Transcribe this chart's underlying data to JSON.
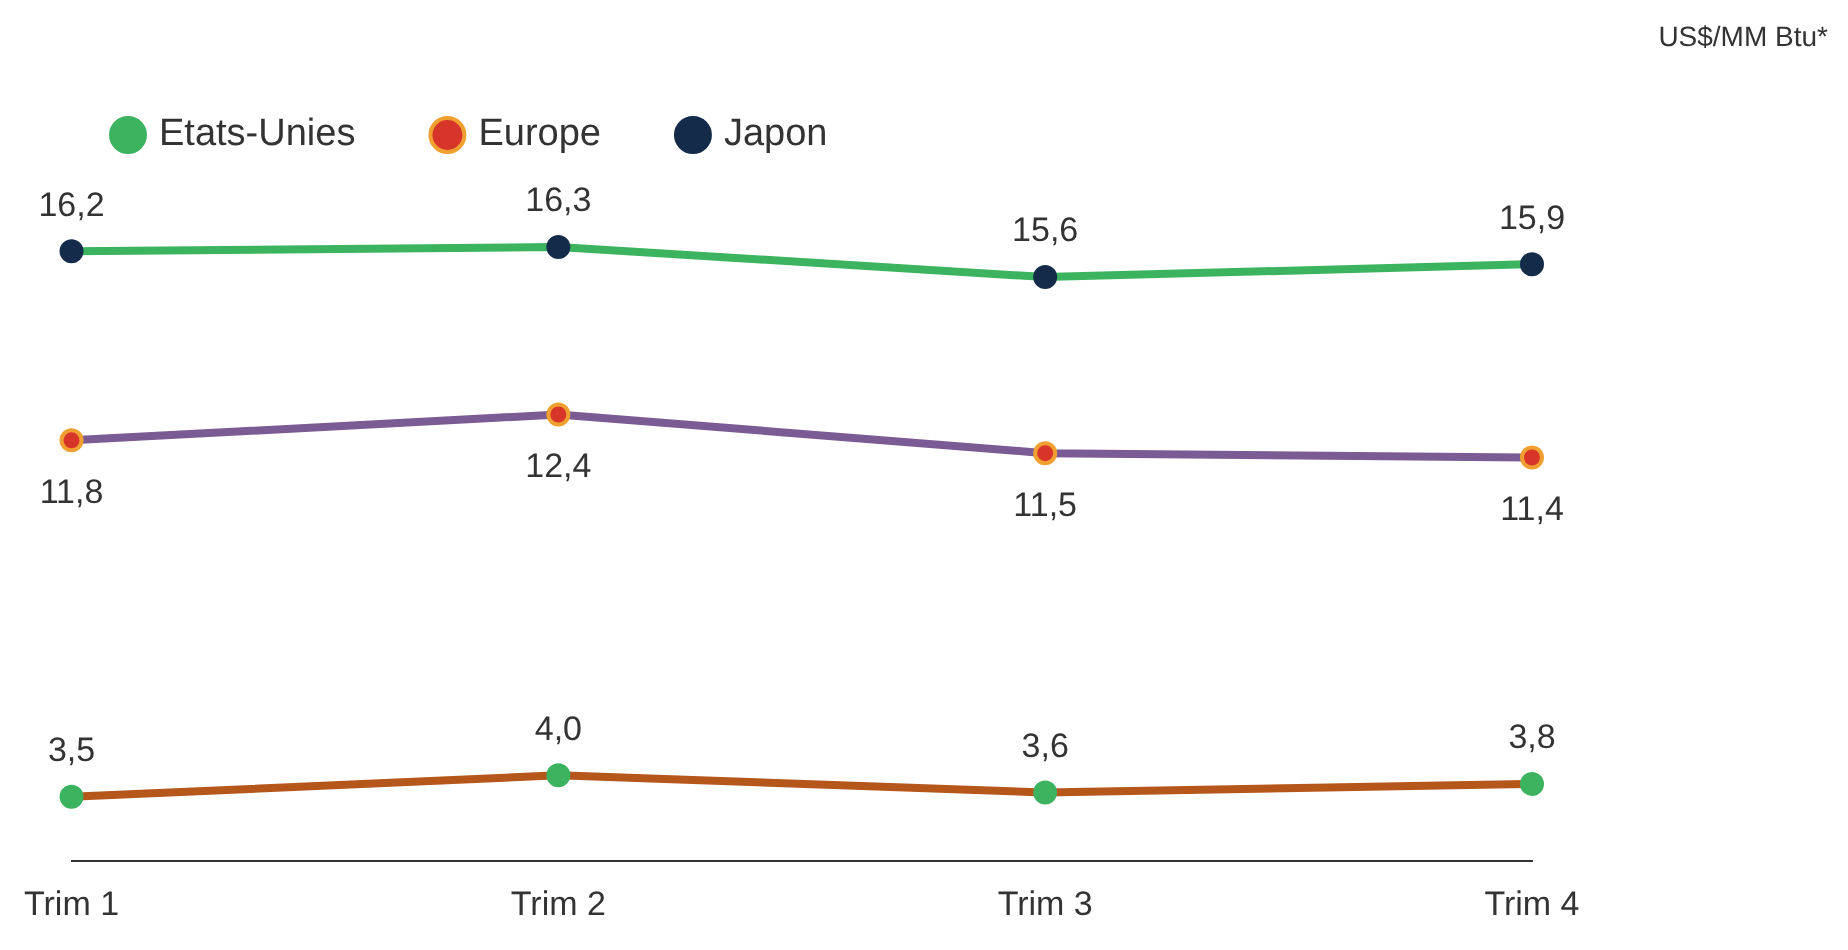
{
  "chart_data": {
    "type": "line",
    "annotations": [
      "US$/MM Btu*"
    ],
    "categories": [
      "Trim 1",
      "Trim 2",
      "Trim 3",
      "Trim 4"
    ],
    "series": [
      {
        "name": "Etats-Unies",
        "color": "#b5561b",
        "values": [
          3.5,
          4.0,
          3.6,
          3.8
        ],
        "value_labels": [
          "3,5",
          "4,0",
          "3,6",
          "3,8"
        ]
      },
      {
        "name": "Europe",
        "color": "#7b5b93",
        "values": [
          11.8,
          12.4,
          11.5,
          11.4
        ],
        "value_labels": [
          "11,8",
          "12,4",
          "11,5",
          "11,4"
        ]
      },
      {
        "name": "Japon",
        "color": "#3cb35f",
        "values": [
          16.2,
          16.3,
          15.6,
          15.9
        ],
        "value_labels": [
          "16,2",
          "16,3",
          "15,6",
          "15,9"
        ]
      }
    ],
    "legend": "top left",
    "grid": false,
    "marker": "circle",
    "line_style": "solid"
  }
}
